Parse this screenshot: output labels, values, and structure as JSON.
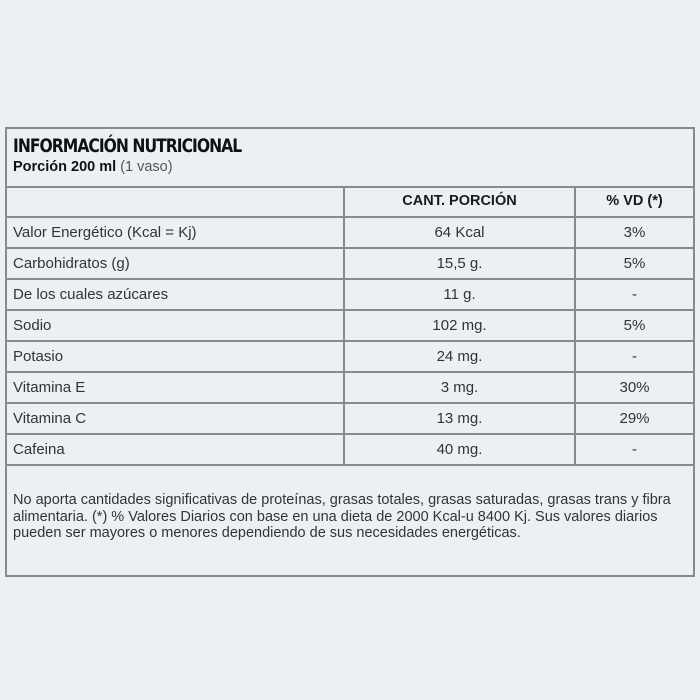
{
  "label": {
    "title": "INFORMACIÓN NUTRICIONAL",
    "portion_bold": "Porción 200 ml",
    "portion_note": "(1 vaso)"
  },
  "table": {
    "headers": [
      "",
      "CANT. PORCIÓN",
      "% VD (*)"
    ],
    "rows": [
      {
        "nutrient": "Valor Energético (Kcal = Kj)",
        "amount": "64 Kcal",
        "dv": "3%"
      },
      {
        "nutrient": "Carbohidratos (g)",
        "amount": "15,5 g.",
        "dv": "5%"
      },
      {
        "nutrient": "De los cuales azúcares",
        "amount": "11 g.",
        "dv": "-"
      },
      {
        "nutrient": "Sodio",
        "amount": "102 mg.",
        "dv": "5%"
      },
      {
        "nutrient": "Potasio",
        "amount": "24 mg.",
        "dv": "-"
      },
      {
        "nutrient": "Vitamina E",
        "amount": "3 mg.",
        "dv": "30%"
      },
      {
        "nutrient": "Vitamina C",
        "amount": "13 mg.",
        "dv": "29%"
      },
      {
        "nutrient": "Cafeina",
        "amount": "40 mg.",
        "dv": "-"
      }
    ]
  },
  "footnote": "No aporta cantidades significativas de proteínas, grasas totales, grasas saturadas, grasas trans y fibra alimentaria. (*) % Valores Diarios con base en una dieta de 2000 Kcal-u 8400 Kj. Sus valores diarios pueden ser mayores o menores dependiendo de sus necesidades energéticas.",
  "colors": {
    "background": "#edf0f2",
    "border": "#8a8a8a",
    "text": "#333333"
  }
}
